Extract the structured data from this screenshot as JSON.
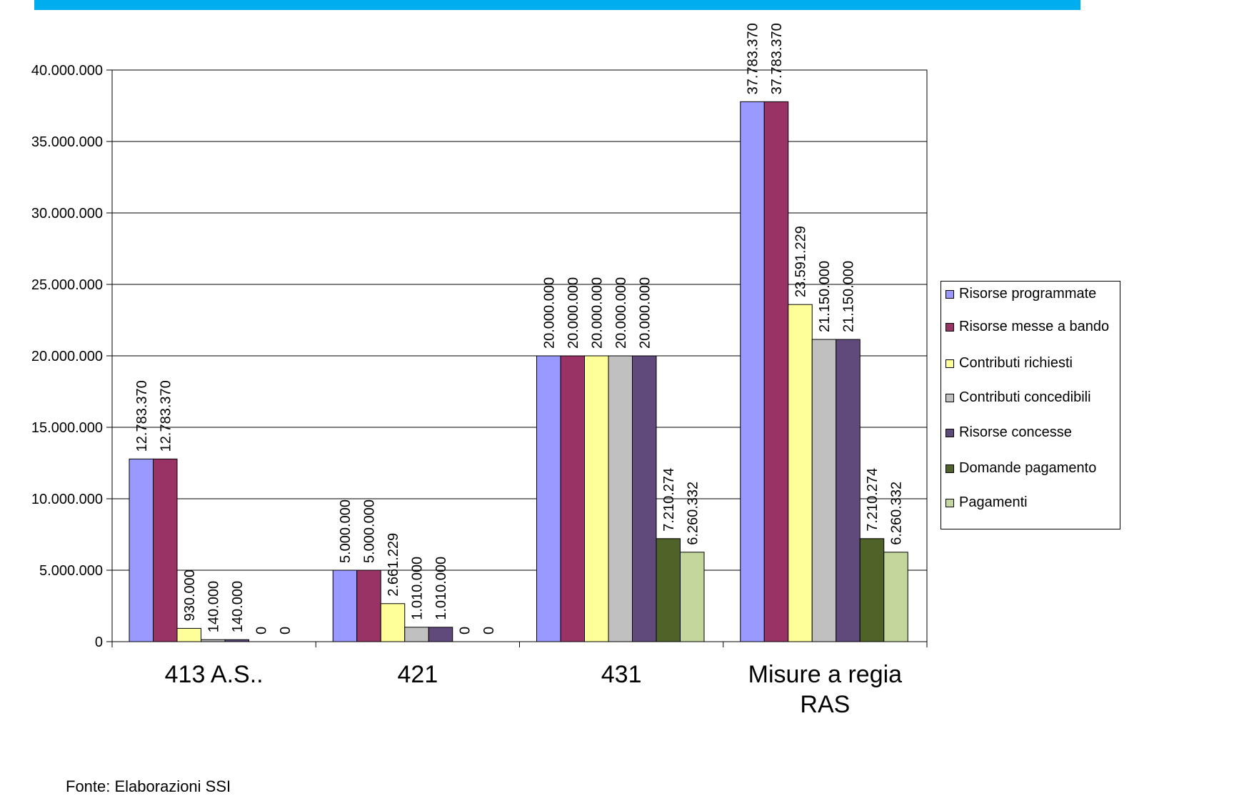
{
  "chart_data": {
    "type": "bar",
    "categories": [
      "413 A.S..",
      "421",
      "431",
      "Misure a regia RAS"
    ],
    "series": [
      {
        "name": "Risorse programmate",
        "color": "#9999FF",
        "values": [
          12783370,
          5000000,
          20000000,
          37783370
        ],
        "labels": [
          "12.783.370",
          "5.000.000",
          "20.000.000",
          "37.783.370"
        ]
      },
      {
        "name": "Risorse messe a bando",
        "color": "#993366",
        "values": [
          12783370,
          5000000,
          20000000,
          37783370
        ],
        "labels": [
          "12.783.370",
          "5.000.000",
          "20.000.000",
          "37.783.370"
        ]
      },
      {
        "name": "Contributi richiesti",
        "color": "#FFFF99",
        "values": [
          930000,
          2661229,
          20000000,
          23591229
        ],
        "labels": [
          "930.000",
          "2.661.229",
          "20.000.000",
          "23.591.229"
        ]
      },
      {
        "name": "Contributi concedibili",
        "color": "#C0C0C0",
        "values": [
          140000,
          1010000,
          20000000,
          21150000
        ],
        "labels": [
          "140.000",
          "1.010.000",
          "20.000.000",
          "21.150.000"
        ]
      },
      {
        "name": "Risorse concesse",
        "color": "#604A7B",
        "values": [
          140000,
          1010000,
          20000000,
          21150000
        ],
        "labels": [
          "140.000",
          "1.010.000",
          "20.000.000",
          "21.150.000"
        ]
      },
      {
        "name": "Domande pagamento",
        "color": "#4F6228",
        "values": [
          0,
          0,
          7210274,
          7210274
        ],
        "labels": [
          "0",
          "0",
          "7.210.274",
          "7.210.274"
        ]
      },
      {
        "name": "Pagamenti",
        "color": "#C3D69B",
        "values": [
          0,
          0,
          6260332,
          6260332
        ],
        "labels": [
          "0",
          "0",
          "6.260.332",
          "6.260.332"
        ]
      }
    ],
    "y_ticks": [
      "0",
      "5.000.000",
      "10.000.000",
      "15.000.000",
      "20.000.000",
      "25.000.000",
      "30.000.000",
      "35.000.000",
      "40.000.000"
    ],
    "ylim": [
      0,
      40000000
    ],
    "grid": true,
    "legend_position": "right"
  },
  "legend": {
    "items": [
      "Risorse programmate",
      "Risorse messe a bando",
      "Contributi richiesti",
      "Contributi concedibili",
      "Risorse concesse",
      "Domande pagamento",
      "Pagamenti"
    ]
  },
  "source_note": "Fonte: Elaborazioni SSI"
}
